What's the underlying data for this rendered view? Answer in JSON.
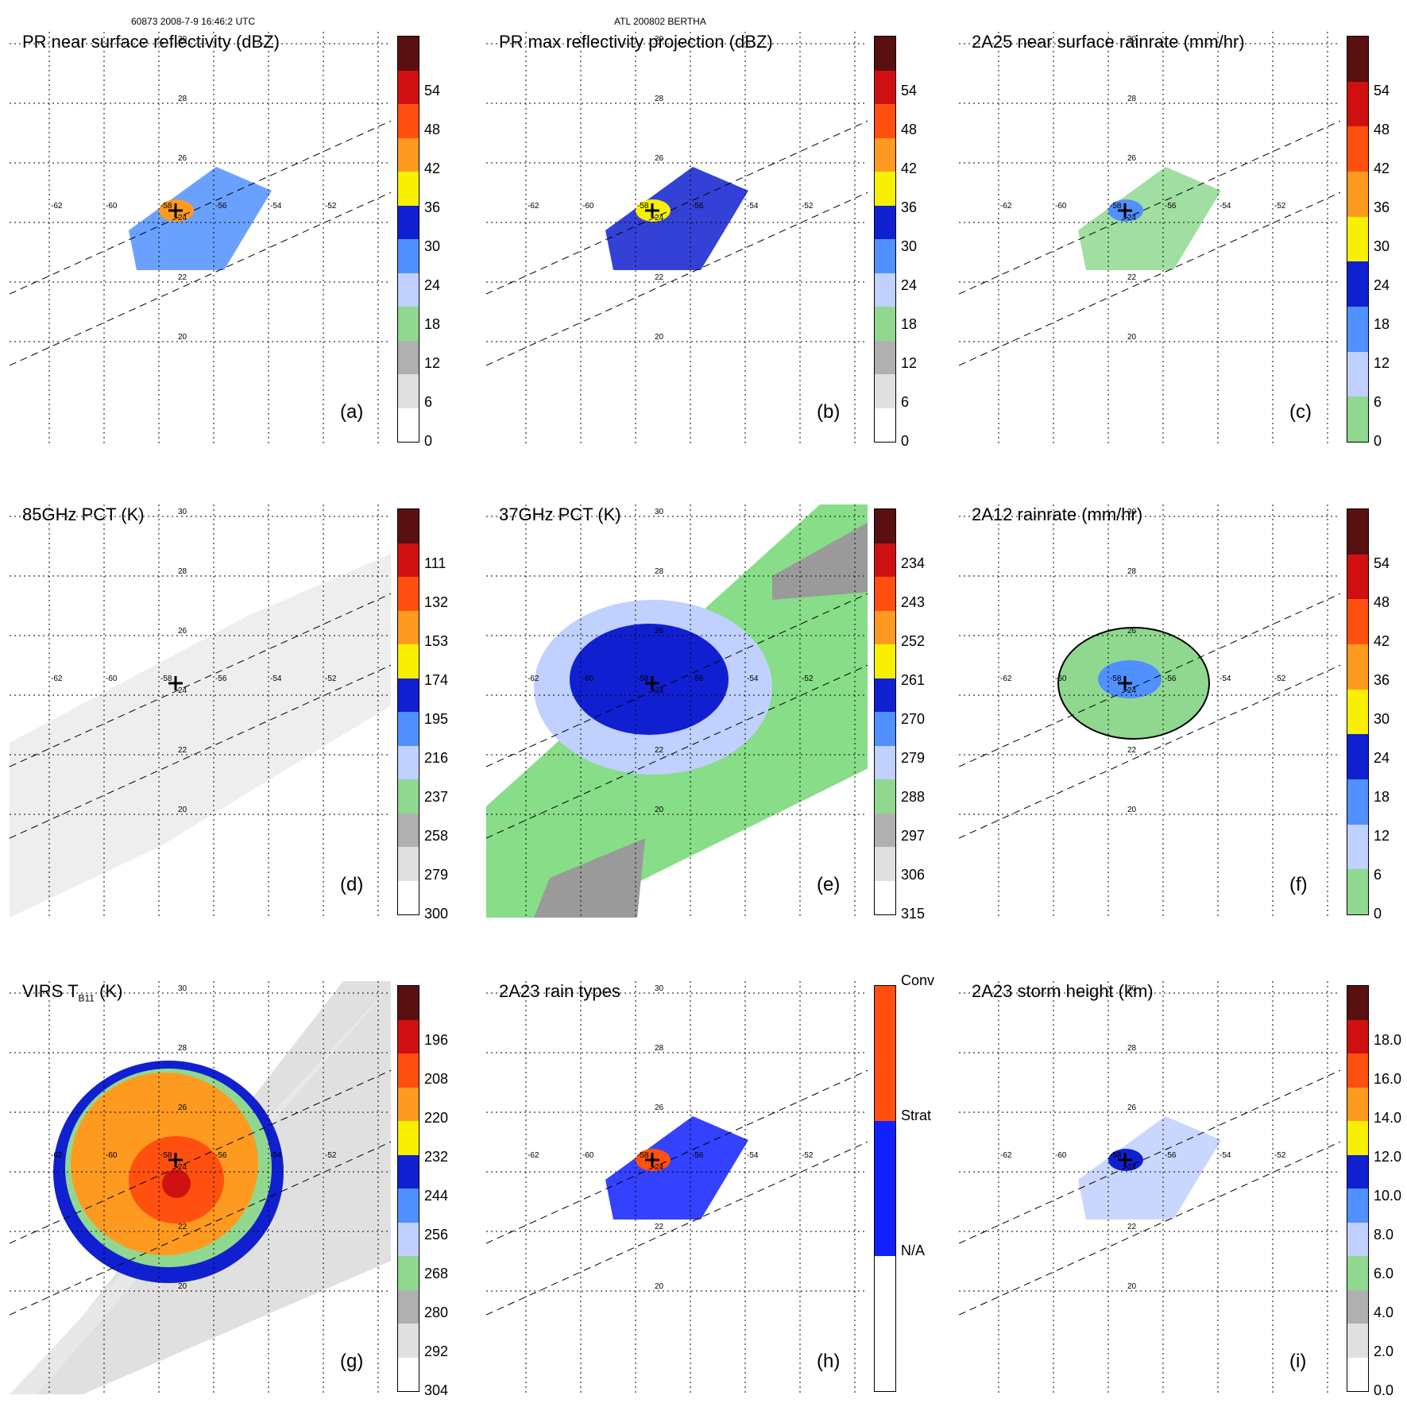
{
  "header": {
    "orbit_time": "60873 2008-7-9 16:46:2 UTC",
    "storm": "ATL 200802 BERTHA"
  },
  "longitudes": [
    "-62",
    "-60",
    "-58",
    "-56",
    "-54",
    "-52"
  ],
  "latitudes": [
    "30",
    "28",
    "26",
    "24",
    "22",
    "20"
  ],
  "panels": [
    {
      "id": "a",
      "title": "PR near surface reflectivity (dBZ)",
      "label": "(a)",
      "ticks": [
        "0",
        "6",
        "12",
        "18",
        "24",
        "30",
        "36",
        "42",
        "48",
        "54"
      ],
      "colors": [
        "#ffffff",
        "#e0e0e0",
        "#b0b0b0",
        "#90d890",
        "#c0d0ff",
        "#5090ff",
        "#1020d0",
        "#f8f000",
        "#ff9a20",
        "#ff5010",
        "#d01010",
        "#5a1010"
      ]
    },
    {
      "id": "b",
      "title": "PR max reflectivity projection (dBZ)",
      "label": "(b)",
      "ticks": [
        "0",
        "6",
        "12",
        "18",
        "24",
        "30",
        "36",
        "42",
        "48",
        "54"
      ],
      "colors": [
        "#ffffff",
        "#e0e0e0",
        "#b0b0b0",
        "#90d890",
        "#c0d0ff",
        "#5090ff",
        "#1020d0",
        "#f8f000",
        "#ff9a20",
        "#ff5010",
        "#d01010",
        "#5a1010"
      ]
    },
    {
      "id": "c",
      "title": "2A25 near surface rainrate (mm/hr)",
      "label": "(c)",
      "ticks": [
        "0",
        "6",
        "12",
        "18",
        "24",
        "30",
        "36",
        "42",
        "48",
        "54"
      ],
      "colors": [
        "#90d890",
        "#c0d0ff",
        "#5090ff",
        "#1020d0",
        "#f8f000",
        "#ff9a20",
        "#ff5010",
        "#d01010",
        "#5a1010"
      ]
    },
    {
      "id": "d",
      "title": "85GHz PCT (K)",
      "label": "(d)",
      "ticks": [
        "300",
        "279",
        "258",
        "237",
        "216",
        "195",
        "174",
        "153",
        "132",
        "111"
      ],
      "colors": [
        "#ffffff",
        "#e0e0e0",
        "#b0b0b0",
        "#90d890",
        "#c0d0ff",
        "#5090ff",
        "#1020d0",
        "#f8f000",
        "#ff9a20",
        "#ff5010",
        "#d01010",
        "#5a1010"
      ]
    },
    {
      "id": "e",
      "title": "37GHz PCT (K)",
      "label": "(e)",
      "ticks": [
        "315",
        "306",
        "297",
        "288",
        "279",
        "270",
        "261",
        "252",
        "243",
        "234"
      ],
      "colors": [
        "#ffffff",
        "#e0e0e0",
        "#b0b0b0",
        "#90d890",
        "#c0d0ff",
        "#5090ff",
        "#1020d0",
        "#f8f000",
        "#ff9a20",
        "#ff5010",
        "#d01010",
        "#5a1010"
      ]
    },
    {
      "id": "f",
      "title": "2A12 rainrate (mm/hr)",
      "label": "(f)",
      "ticks": [
        "0",
        "6",
        "12",
        "18",
        "24",
        "30",
        "36",
        "42",
        "48",
        "54"
      ],
      "colors": [
        "#90d890",
        "#c0d0ff",
        "#5090ff",
        "#1020d0",
        "#f8f000",
        "#ff9a20",
        "#ff5010",
        "#d01010",
        "#5a1010"
      ]
    },
    {
      "id": "g",
      "title": "VIRS T",
      "title_sub": "B11",
      "title_tail": " (K)",
      "label": "(g)",
      "ticks": [
        "304",
        "292",
        "280",
        "268",
        "256",
        "244",
        "232",
        "220",
        "208",
        "196"
      ],
      "colors": [
        "#ffffff",
        "#e0e0e0",
        "#b0b0b0",
        "#90d890",
        "#c0d0ff",
        "#5090ff",
        "#1020d0",
        "#f8f000",
        "#ff9a20",
        "#ff5010",
        "#d01010",
        "#5a1010"
      ]
    },
    {
      "id": "h",
      "title": "2A23 rain types",
      "label": "(h)",
      "ticks": [
        "N/A",
        "Strat",
        "Conv"
      ],
      "colors": [
        "#ffffff",
        "#1020ff",
        "#ff5010"
      ]
    },
    {
      "id": "i",
      "title": "2A23 storm height (km)",
      "label": "(i)",
      "ticks": [
        "0.0",
        "2.0",
        "4.0",
        "6.0",
        "8.0",
        "10.0",
        "12.0",
        "14.0",
        "16.0",
        "18.0"
      ],
      "colors": [
        "#ffffff",
        "#e0e0e0",
        "#b0b0b0",
        "#90d890",
        "#c0d0ff",
        "#5090ff",
        "#1020d0",
        "#f8f000",
        "#ff9a20",
        "#ff5010",
        "#d01010",
        "#5a1010"
      ]
    }
  ]
}
